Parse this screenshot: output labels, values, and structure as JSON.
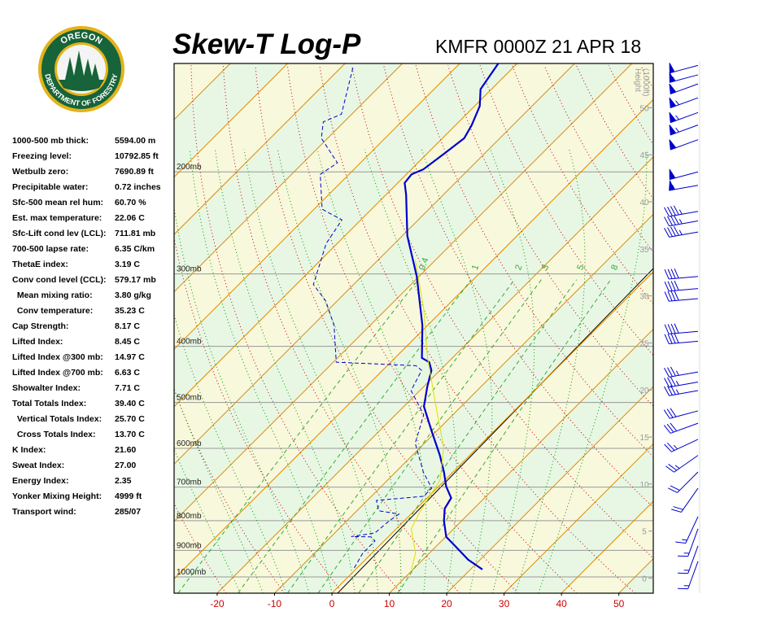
{
  "header": {
    "title": "Skew-T Log-P",
    "station": "KMFR 0000Z 21 APR 18"
  },
  "logo": {
    "top_text": "OREGON",
    "bottom_text": "DEPARTMENT OF FORESTRY"
  },
  "stats": [
    [
      "1000-500 mb thick:",
      "5594.00 m"
    ],
    [
      "Freezing level:",
      "10792.85 ft"
    ],
    [
      "Wetbulb zero:",
      "7690.89 ft"
    ],
    [
      "Precipitable water:",
      "0.72 inches"
    ],
    [
      "Sfc-500 mean rel hum:",
      "60.70 %"
    ],
    [
      "Est. max temperature:",
      "22.06 C"
    ],
    [
      "Sfc-Lift cond lev (LCL):",
      "711.81 mb"
    ],
    [
      "700-500 lapse rate:",
      "6.35 C/km"
    ],
    [
      "ThetaE index:",
      "3.19 C"
    ],
    [
      "Conv cond level (CCL):",
      "579.17 mb"
    ],
    [
      "  Mean mixing ratio:",
      "3.80 g/kg"
    ],
    [
      "  Conv temperature:",
      "35.23 C"
    ],
    [
      "Cap Strength:",
      "8.17 C"
    ],
    [
      "Lifted Index:",
      "8.45 C"
    ],
    [
      "Lifted Index @300 mb:",
      "14.97 C"
    ],
    [
      "Lifted Index @700 mb:",
      "6.63 C"
    ],
    [
      "Showalter Index:",
      "7.71 C"
    ],
    [
      "Total Totals Index:",
      "39.40 C"
    ],
    [
      "  Vertical Totals Index:",
      "25.70 C"
    ],
    [
      "  Cross Totals Index:",
      "13.70 C"
    ],
    [
      "K Index:",
      "21.60"
    ],
    [
      "Sweat Index:",
      "27.00"
    ],
    [
      "Energy Index:",
      "2.35"
    ],
    [
      "Yonker Mixing Height:",
      "4999 ft"
    ],
    [
      "Transport wind:",
      "285/07"
    ]
  ],
  "chart_data": {
    "type": "skewt",
    "xlim": [
      -27.5,
      56
    ],
    "xticks": [
      -20,
      -10,
      0,
      10,
      20,
      30,
      40,
      50
    ],
    "ylim": [
      1067,
      130
    ],
    "yticks": [
      {
        "value": 1000,
        "label": "1000mb"
      },
      {
        "value": 900,
        "label": "900mb"
      },
      {
        "value": 800,
        "label": "800mb"
      },
      {
        "value": 700,
        "label": "700mb"
      },
      {
        "value": 600,
        "label": "600mb"
      },
      {
        "value": 500,
        "label": "500mb"
      },
      {
        "value": 400,
        "label": "400mb"
      },
      {
        "value": 300,
        "label": "300mb"
      },
      {
        "value": 200,
        "label": "200mb"
      }
    ],
    "height_label": [
      "Height",
      "(1000ft)"
    ],
    "height_lim": [
      -1.6,
      54.7
    ],
    "height_ticks": [
      0,
      5,
      10,
      15,
      20,
      25,
      30,
      35,
      40,
      45,
      50
    ],
    "mixing_ratio_lines": [
      0.4,
      1,
      2,
      3,
      5,
      8
    ],
    "series": [
      {
        "color": "#0000cc",
        "style": "solid",
        "pressure": [
          971,
          934,
          887,
          853,
          800,
          762,
          731,
          698,
          659,
          617,
          560,
          508,
          469,
          440,
          426,
          419,
          368,
          303,
          258,
          219,
          209,
          202,
          198,
          186,
          175,
          166,
          154,
          144,
          130
        ],
        "values": [
          22.1,
          17.9,
          13.5,
          10.1,
          6.9,
          4.9,
          4.2,
          1.3,
          -1.6,
          -5.2,
          -10.9,
          -16.5,
          -19.4,
          -21.5,
          -23.3,
          -25.3,
          -30.9,
          -40.4,
          -49.1,
          -56.5,
          -58.8,
          -59.1,
          -57.9,
          -57.0,
          -56.2,
          -57.2,
          -59.1,
          -61.9,
          -63.3
        ]
      },
      {
        "color": "#0000cc",
        "style": "dashed",
        "pressure": [
          965,
          910,
          867,
          853,
          852,
          840,
          800,
          779,
          769,
          738,
          726,
          703,
          659,
          588,
          525,
          477,
          440,
          432,
          426,
          368,
          334,
          313,
          266,
          242,
          232,
          202,
          193,
          175,
          164,
          159,
          131
        ],
        "values": [
          -0.5,
          -1.6,
          -1.6,
          -3.0,
          -6.5,
          -3.0,
          -2.6,
          -2.1,
          -6.2,
          -8.4,
          -0.9,
          -0.9,
          -5.2,
          -11.6,
          -15.1,
          -21.5,
          -23.2,
          -25.0,
          -39.5,
          -46.3,
          -52.0,
          -57.0,
          -61.9,
          -63.3,
          -68.6,
          -75.0,
          -74.0,
          -81.1,
          -83.6,
          -81.8,
          -88.2
        ]
      },
      {
        "color": "#e0e000",
        "style": "solid",
        "pressure": [
          971,
          910,
          826,
          774,
          680,
          598,
          508,
          419,
          345,
          284
        ],
        "values": [
          9.7,
          7.6,
          2.6,
          1.2,
          -0.9,
          -5.9,
          -14.4,
          -24.3,
          -33.5,
          -43.5
        ]
      }
    ],
    "winds": {
      "pressure": [
        131,
        136,
        141,
        149,
        158,
        166,
        176,
        200,
        211,
        234,
        243,
        254,
        303,
        318,
        331,
        377,
        392,
        443,
        461,
        477,
        517,
        543,
        579,
        617,
        659,
        703,
        787,
        826,
        884,
        940
      ],
      "direction": [
        255,
        255,
        250,
        250,
        250,
        250,
        250,
        255,
        260,
        260,
        260,
        260,
        265,
        265,
        265,
        265,
        265,
        260,
        260,
        260,
        255,
        250,
        245,
        235,
        225,
        215,
        205,
        200,
        200,
        200
      ],
      "speed": [
        50,
        55,
        60,
        65,
        65,
        65,
        60,
        60,
        55,
        45,
        45,
        45,
        40,
        40,
        40,
        40,
        40,
        35,
        35,
        35,
        30,
        30,
        25,
        25,
        20,
        20,
        15,
        15,
        15,
        15
      ]
    }
  }
}
